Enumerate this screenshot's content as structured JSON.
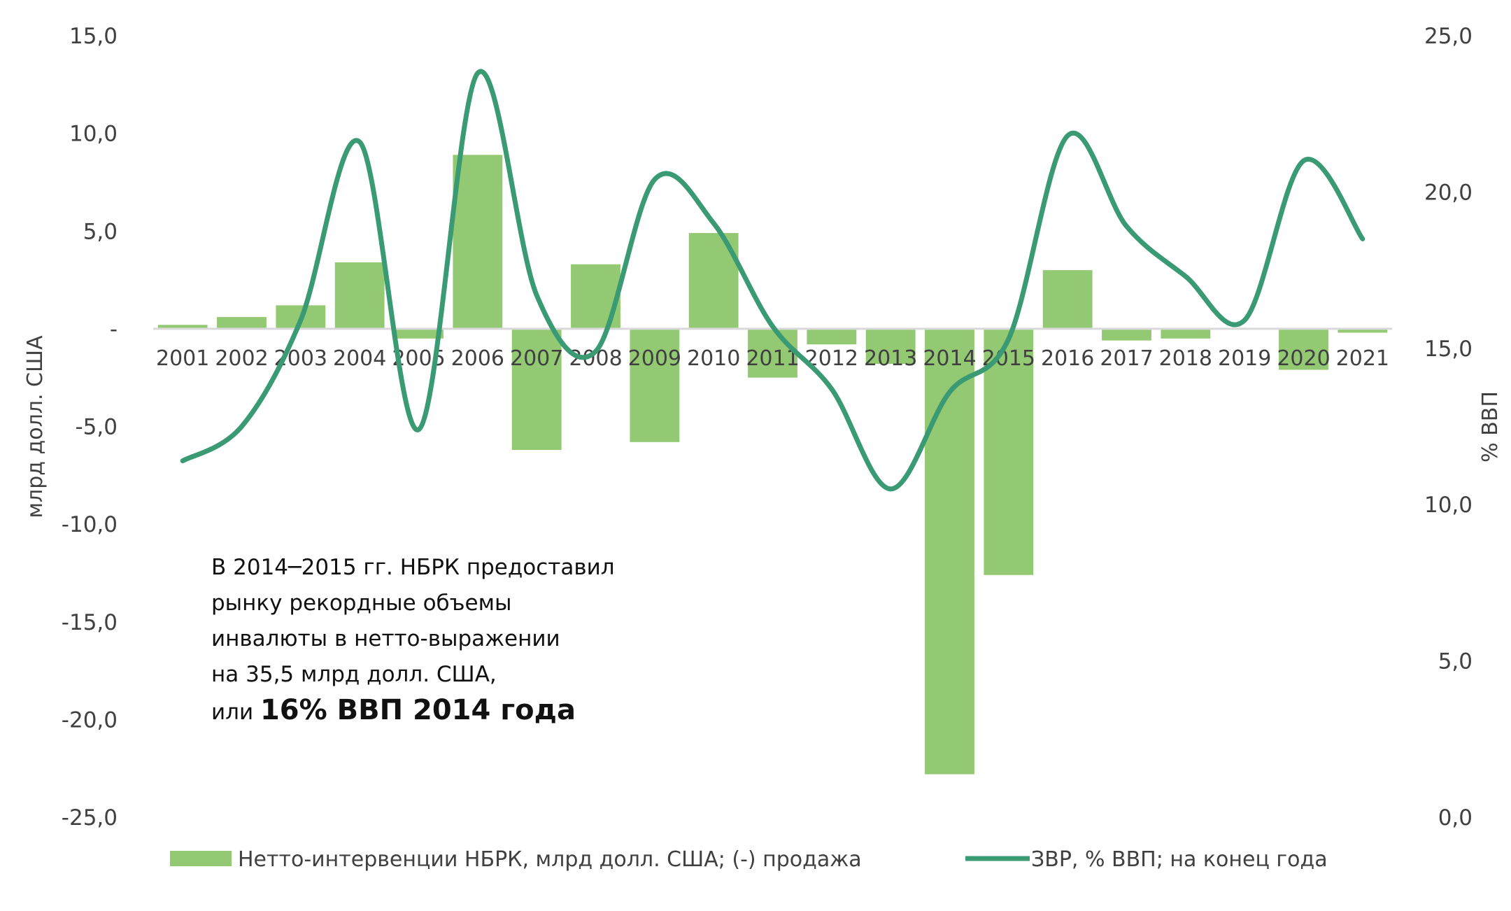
{
  "chart_data": {
    "type": "bar+line",
    "categories": [
      "2001",
      "2002",
      "2003",
      "2004",
      "2005",
      "2006",
      "2007",
      "2008",
      "2009",
      "2010",
      "2011",
      "2012",
      "2013",
      "2014",
      "2015",
      "2016",
      "2017",
      "2018",
      "2019",
      "2020",
      "2021"
    ],
    "series": [
      {
        "name": "Нетто-интервенции НБРК, млрд долл. США; (-) продажа",
        "type": "bar",
        "axis": "left",
        "color": "#93c972",
        "values": [
          0.2,
          0.6,
          1.2,
          3.4,
          -0.5,
          8.9,
          -6.2,
          3.3,
          -5.8,
          4.9,
          -2.5,
          -0.8,
          -1.8,
          -22.8,
          -12.6,
          3.0,
          -0.6,
          -0.5,
          0.0,
          -2.1,
          -0.2
        ]
      },
      {
        "name": "ЗВР, % ВВП; на конец года",
        "type": "line",
        "smooth": true,
        "axis": "right",
        "color": "#3a9a73",
        "values": [
          11.4,
          12.5,
          15.9,
          21.6,
          12.4,
          23.8,
          16.7,
          14.9,
          20.4,
          19.0,
          15.7,
          13.7,
          10.5,
          13.6,
          15.3,
          21.8,
          18.9,
          17.3,
          15.9,
          21.0,
          18.5
        ]
      }
    ],
    "y_left": {
      "label": "млрд долл. США",
      "ylim": [
        -25,
        15
      ],
      "ticks": [
        "15,0",
        "10,0",
        "5,0",
        "-",
        "-5,0",
        "-10,0",
        "-15,0",
        "-20,0",
        "-25,0"
      ]
    },
    "y_right": {
      "label": "% ВВП",
      "ylim": [
        0,
        25
      ],
      "ticks": [
        "25,0",
        "20,0",
        "15,0",
        "10,0",
        "5,0",
        "0,0"
      ]
    },
    "grid": false,
    "legend": "bottom",
    "annotation": {
      "lines": [
        "В 2014─2015 гг. НБРК предоставил",
        "рынку рекордные объемы",
        "инвалюты в нетто-выражении",
        "на 35,5 млрд долл. США,"
      ],
      "last_prefix": "или",
      "last_bold": "16% ВВП 2014 года"
    }
  }
}
